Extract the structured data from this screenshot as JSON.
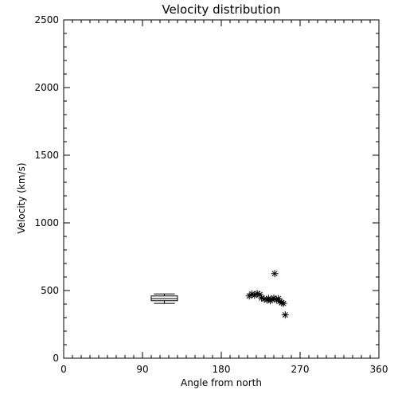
{
  "chart_data": {
    "type": "scatter",
    "title": "Velocity distribution",
    "xlabel": "Angle from north",
    "ylabel": "Velocity (km/s)",
    "xlim": [
      0,
      360
    ],
    "ylim": [
      0,
      2500
    ],
    "xticks": [
      0,
      90,
      180,
      270,
      360
    ],
    "xtick_labels": [
      "0",
      "90",
      "180",
      "270",
      "360"
    ],
    "yticks": [
      0,
      500,
      1000,
      1500,
      2000,
      2500
    ],
    "ytick_labels": [
      "0",
      "500",
      "1000",
      "1500",
      "2000",
      "2500"
    ],
    "x_minor_step": 10,
    "y_minor_step": 100,
    "grid": false,
    "legend": "none",
    "boxplot": {
      "x": 115,
      "width": 30,
      "min": 405,
      "q1": 425,
      "median": 440,
      "q3": 460,
      "max": 475
    },
    "points": [
      {
        "x": 212,
        "y": 460
      },
      {
        "x": 215,
        "y": 475
      },
      {
        "x": 218,
        "y": 465
      },
      {
        "x": 221,
        "y": 478
      },
      {
        "x": 224,
        "y": 470
      },
      {
        "x": 226,
        "y": 445
      },
      {
        "x": 229,
        "y": 438
      },
      {
        "x": 232,
        "y": 430
      },
      {
        "x": 234,
        "y": 442
      },
      {
        "x": 236,
        "y": 425
      },
      {
        "x": 238,
        "y": 435
      },
      {
        "x": 240,
        "y": 445
      },
      {
        "x": 241,
        "y": 625
      },
      {
        "x": 243,
        "y": 430
      },
      {
        "x": 245,
        "y": 440
      },
      {
        "x": 247,
        "y": 420
      },
      {
        "x": 249,
        "y": 410
      },
      {
        "x": 251,
        "y": 405
      },
      {
        "x": 253,
        "y": 320
      }
    ]
  }
}
